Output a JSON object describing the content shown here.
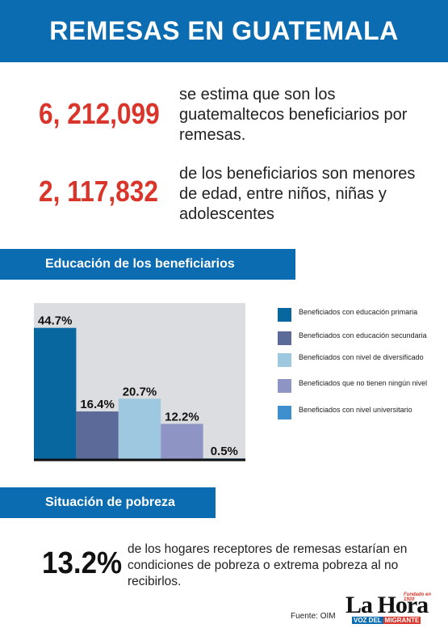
{
  "header": {
    "title": "REMESAS EN GUATEMALA"
  },
  "stats": [
    {
      "number": "6, 212,099",
      "text": "se estima que son los guatemaltecos beneficiarios por remesas."
    },
    {
      "number": "2, 117,832",
      "text": "de los beneficiarios son menores de edad, entre niños, niñas y adolescentes"
    }
  ],
  "sections": {
    "education": "Educación de los beneficiarios",
    "poverty": "Situación de pobreza"
  },
  "chart_data": {
    "type": "bar",
    "categories": [
      "Beneficiados con educación primaria",
      "Beneficiados con educación secundaria",
      "Beneficiados con nivel de diversificado",
      "Beneficiados que no tienen ningún nivel",
      "Beneficiados con nivel universitario"
    ],
    "values": [
      44.7,
      16.4,
      20.7,
      12.2,
      0.5
    ],
    "value_labels": [
      "44.7%",
      "16.4%",
      "20.7%",
      "12.2%",
      "0.5%"
    ],
    "colors": [
      "#07679e",
      "#5c6a99",
      "#9ec8e0",
      "#8e94c4",
      "#3d8fcd"
    ],
    "background": "#dcdde0",
    "ylim": [
      0,
      52
    ],
    "legend_position": "right"
  },
  "poverty": {
    "number": "13.2%",
    "text": "de los hogares receptores de remesas estarían en condiciones de pobreza o extrema pobreza al no recibirlos."
  },
  "footer": {
    "source": "Fuente: OIM",
    "logo_name": "La Hora",
    "logo_tag": "Fundado en 1920",
    "logo_sub_1": "VOZ DEL",
    "logo_sub_2": "MIGRANTE"
  }
}
